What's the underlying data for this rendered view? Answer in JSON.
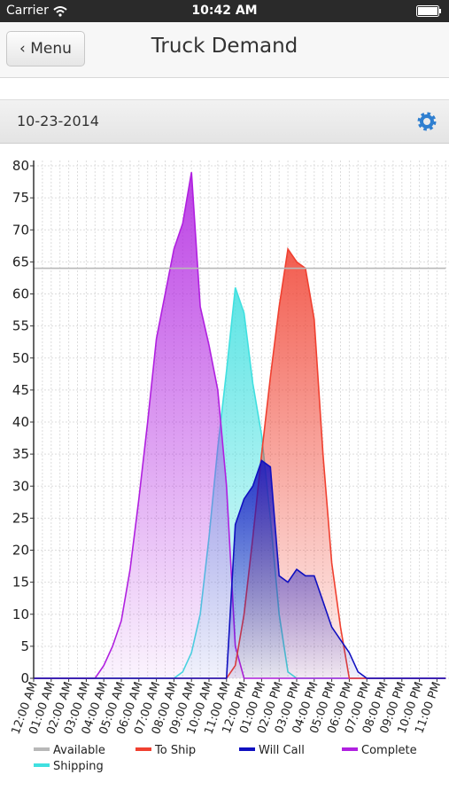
{
  "status_bar": {
    "carrier": "Carrier",
    "time": "10:42 AM"
  },
  "nav": {
    "back": "Menu",
    "title": "Truck Demand"
  },
  "date_bar": {
    "date": "10-23-2014"
  },
  "chart_data": {
    "type": "area",
    "categories": [
      "12:00 AM",
      null,
      "01:00 AM",
      null,
      "02:00 AM",
      null,
      "03:00 AM",
      null,
      "04:00 AM",
      null,
      "05:00 AM",
      null,
      "06:00 AM",
      null,
      "07:00 AM",
      null,
      "08:00 AM",
      null,
      "09:00 AM",
      null,
      "10:00 AM",
      null,
      "11:00 AM",
      null,
      "12:00 PM",
      null,
      "01:00 PM",
      null,
      "02:00 PM",
      null,
      "03:00 PM",
      null,
      "04:00 PM",
      null,
      "05:00 PM",
      null,
      "06:00 PM",
      null,
      "07:00 PM",
      null,
      "08:00 PM",
      null,
      "09:00 PM",
      null,
      "10:00 PM",
      null,
      "11:00 PM",
      null
    ],
    "ylim": [
      0,
      80
    ],
    "yticks": [
      0,
      5,
      10,
      15,
      20,
      25,
      30,
      35,
      40,
      45,
      50,
      55,
      60,
      65,
      70,
      75,
      80
    ],
    "grid": true,
    "series": [
      {
        "name": "Available",
        "color": "#b8b8b8",
        "fill": false,
        "values": [
          64,
          64,
          64,
          64,
          64,
          64,
          64,
          64,
          64,
          64,
          64,
          64,
          64,
          64,
          64,
          64,
          64,
          64,
          64,
          64,
          64,
          64,
          64,
          64,
          64,
          64,
          64,
          64,
          64,
          64,
          64,
          64,
          64,
          64,
          64,
          64,
          64,
          64,
          64,
          64,
          64,
          64,
          64,
          64,
          64,
          64,
          64,
          64
        ]
      },
      {
        "name": "To Ship",
        "color": "#f04030",
        "fill": true,
        "values": [
          0,
          0,
          0,
          0,
          0,
          0,
          0,
          0,
          0,
          0,
          0,
          0,
          0,
          0,
          0,
          0,
          0,
          0,
          0,
          0,
          0,
          0,
          0,
          2,
          10,
          22,
          35,
          47,
          58,
          67,
          65,
          64,
          56,
          35,
          18,
          8,
          0,
          0,
          0,
          0,
          0,
          0,
          0,
          0,
          0,
          0,
          0,
          0
        ]
      },
      {
        "name": "Will Call",
        "color": "#1010c0",
        "fill": true,
        "values": [
          0,
          0,
          0,
          0,
          0,
          0,
          0,
          0,
          0,
          0,
          0,
          0,
          0,
          0,
          0,
          0,
          0,
          0,
          0,
          0,
          0,
          0,
          0,
          24,
          28,
          30,
          34,
          33,
          16,
          15,
          17,
          16,
          16,
          12,
          8,
          6,
          4,
          1,
          0,
          0,
          0,
          0,
          0,
          0,
          0,
          0,
          0,
          0
        ]
      },
      {
        "name": "Complete",
        "color": "#b020e0",
        "fill": true,
        "values": [
          0,
          0,
          0,
          0,
          0,
          0,
          0,
          0,
          2,
          5,
          9,
          17,
          28,
          40,
          53,
          60,
          67,
          71,
          79,
          58,
          52,
          45,
          30,
          5,
          0,
          0,
          0,
          0,
          0,
          0,
          0,
          0,
          0,
          0,
          0,
          0,
          0,
          0,
          0,
          0,
          0,
          0,
          0,
          0,
          0,
          0,
          0,
          0
        ]
      },
      {
        "name": "Shipping",
        "color": "#40e0e0",
        "fill": true,
        "values": [
          0,
          0,
          0,
          0,
          0,
          0,
          0,
          0,
          0,
          0,
          0,
          0,
          0,
          0,
          0,
          0,
          0,
          1,
          4,
          10,
          22,
          36,
          48,
          61,
          57,
          46,
          38,
          25,
          10,
          1,
          0,
          0,
          0,
          0,
          0,
          0,
          0,
          0,
          0,
          0,
          0,
          0,
          0,
          0,
          0,
          0,
          0,
          0
        ]
      }
    ]
  }
}
